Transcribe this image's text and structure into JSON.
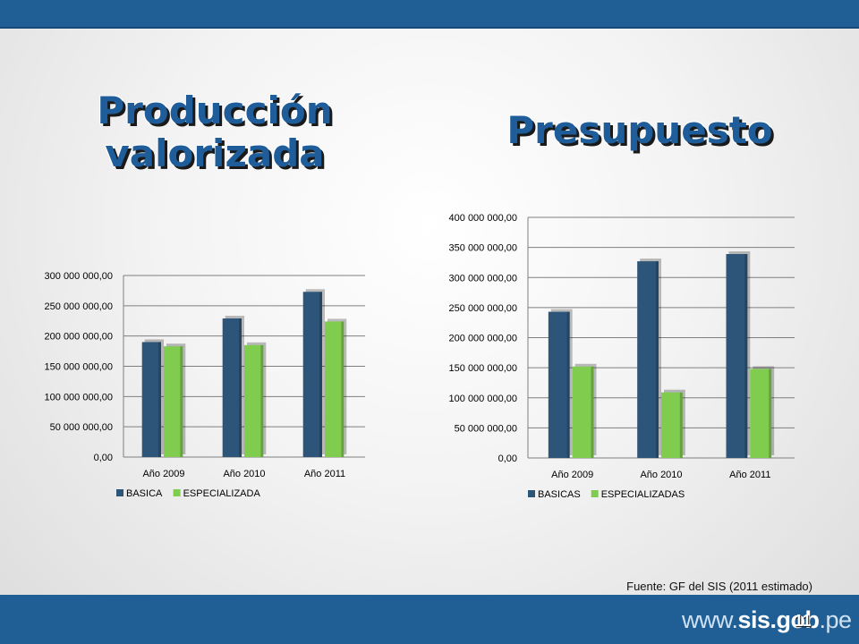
{
  "titles": {
    "left_line1": "Producción",
    "left_line2": "valorizada",
    "right": "Presupuesto"
  },
  "colors": {
    "series1": "#2d5579",
    "series2": "#7fcc4f",
    "gridline": "#7f7f7f",
    "bar_accent": "#1f5f96"
  },
  "chart_data": [
    {
      "type": "bar",
      "categories": [
        "Año 2009",
        "Año 2010",
        "Año 2011"
      ],
      "series": [
        {
          "name": "BASICA",
          "values": [
            190000000,
            229000000,
            273000000
          ]
        },
        {
          "name": "ESPECIALIZADA",
          "values": [
            183000000,
            185000000,
            224000000
          ]
        }
      ],
      "ylim": [
        0,
        300000000
      ],
      "yticks": [
        "0,00",
        "50 000 000,00",
        "100 000 000,00",
        "150 000 000,00",
        "200 000 000,00",
        "250 000 000,00",
        "300 000 000,00"
      ],
      "legend": "bottom",
      "grid": true
    },
    {
      "type": "bar",
      "categories": [
        "Año 2009",
        "Año 2010",
        "Año 2011"
      ],
      "series": [
        {
          "name": "BASICAS",
          "values": [
            243000000,
            327000000,
            339000000
          ]
        },
        {
          "name": "ESPECIALIZADAS",
          "values": [
            152000000,
            109000000,
            148000000
          ]
        }
      ],
      "ylim": [
        0,
        400000000
      ],
      "yticks": [
        "0,00",
        "50 000 000,00",
        "100 000 000,00",
        "150 000 000,00",
        "200 000 000,00",
        "250 000 000,00",
        "300 000 000,00",
        "350 000 000,00",
        "400 000 000,00"
      ],
      "legend": "bottom",
      "grid": true
    }
  ],
  "footer": {
    "source": "Fuente: GF del SIS (2011 estimado)",
    "page_number": "11",
    "logo_www": "www.",
    "logo_sis": "sis.gob",
    "logo_pe": ".pe"
  }
}
